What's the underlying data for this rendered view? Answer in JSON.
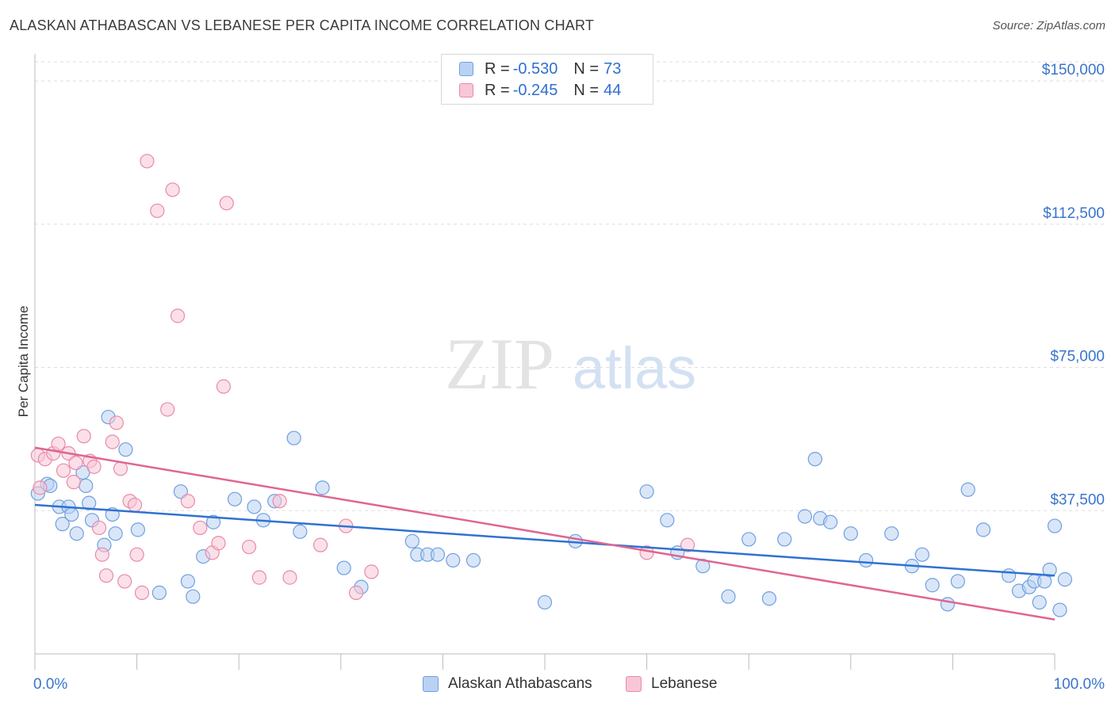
{
  "title": "ALASKAN ATHABASCAN VS LEBANESE PER CAPITA INCOME CORRELATION CHART",
  "source": "Source: ZipAtlas.com",
  "watermark": {
    "zip": "ZIP",
    "atlas": "atlas"
  },
  "legend": {
    "rows": [
      {
        "r_label": "R = ",
        "r_value": "-0.530",
        "n_label": "N = ",
        "n_value": "73"
      },
      {
        "r_label": "R = ",
        "r_value": "-0.245",
        "n_label": "N = ",
        "n_value": "44"
      }
    ]
  },
  "bottom_legend": [
    "Alaskan Athabascans",
    "Lebanese"
  ],
  "colors": {
    "blue_fill": "#b9d2f3",
    "blue_stroke": "#6fa0e0",
    "blue_line": "#2f72d2",
    "pink_fill": "#f8c6d6",
    "pink_stroke": "#e88aab",
    "pink_line": "#e06592",
    "axis_label": "#3a74cc",
    "grid": "#dddddd"
  },
  "chart_data": {
    "type": "scatter",
    "title": "ALASKAN ATHABASCAN VS LEBANESE PER CAPITA INCOME CORRELATION CHART",
    "xlabel": "",
    "ylabel": "Per Capita Income",
    "xlim": [
      0,
      100
    ],
    "ylim": [
      0,
      155000
    ],
    "y_ticks": [
      37500,
      75000,
      112500,
      150000
    ],
    "y_tick_labels": [
      "$37,500",
      "$75,000",
      "$112,500",
      "$150,000"
    ],
    "x_tick_labels": [
      "0.0%",
      "100.0%"
    ],
    "grid": true,
    "legend_position": "top-center",
    "series": [
      {
        "name": "Alaskan Athabascans",
        "color": "#6fa0e0",
        "trend": [
          [
            0,
            39000
          ],
          [
            100,
            20500
          ]
        ],
        "points": [
          [
            0.3,
            42000
          ],
          [
            1.2,
            44500
          ],
          [
            1.5,
            44000
          ],
          [
            2.4,
            38500
          ],
          [
            2.7,
            34000
          ],
          [
            3.3,
            38500
          ],
          [
            3.6,
            36500
          ],
          [
            4.1,
            31500
          ],
          [
            4.7,
            47500
          ],
          [
            5.0,
            44000
          ],
          [
            5.3,
            39500
          ],
          [
            5.6,
            35000
          ],
          [
            6.8,
            28500
          ],
          [
            7.2,
            62000
          ],
          [
            7.6,
            36500
          ],
          [
            7.9,
            31500
          ],
          [
            8.9,
            53500
          ],
          [
            10.1,
            32500
          ],
          [
            12.2,
            16000
          ],
          [
            14.3,
            42500
          ],
          [
            15.0,
            19000
          ],
          [
            15.5,
            15000
          ],
          [
            16.5,
            25500
          ],
          [
            17.5,
            34500
          ],
          [
            19.6,
            40500
          ],
          [
            21.5,
            38500
          ],
          [
            22.4,
            35000
          ],
          [
            23.5,
            40000
          ],
          [
            25.4,
            56500
          ],
          [
            26.0,
            32000
          ],
          [
            28.2,
            43500
          ],
          [
            30.3,
            22500
          ],
          [
            32.0,
            17500
          ],
          [
            37.0,
            29500
          ],
          [
            37.5,
            26000
          ],
          [
            38.5,
            26000
          ],
          [
            39.5,
            26000
          ],
          [
            41.0,
            24500
          ],
          [
            43.0,
            24500
          ],
          [
            50.0,
            13500
          ],
          [
            53.0,
            29500
          ],
          [
            60.0,
            42500
          ],
          [
            62.0,
            35000
          ],
          [
            63.0,
            26500
          ],
          [
            65.5,
            23000
          ],
          [
            68.0,
            15000
          ],
          [
            70.0,
            30000
          ],
          [
            72.0,
            14500
          ],
          [
            73.5,
            30000
          ],
          [
            75.5,
            36000
          ],
          [
            76.5,
            51000
          ],
          [
            77.0,
            35500
          ],
          [
            78.0,
            34500
          ],
          [
            80.0,
            31500
          ],
          [
            81.5,
            24500
          ],
          [
            84.0,
            31500
          ],
          [
            86.0,
            23000
          ],
          [
            87.0,
            26000
          ],
          [
            88.0,
            18000
          ],
          [
            89.5,
            13000
          ],
          [
            90.5,
            19000
          ],
          [
            91.5,
            43000
          ],
          [
            93.0,
            32500
          ],
          [
            95.5,
            20500
          ],
          [
            96.5,
            16500
          ],
          [
            97.5,
            17500
          ],
          [
            98.0,
            19000
          ],
          [
            98.5,
            13500
          ],
          [
            99.0,
            19000
          ],
          [
            99.5,
            22000
          ],
          [
            100.0,
            33500
          ],
          [
            100.5,
            11500
          ],
          [
            101.0,
            19500
          ]
        ]
      },
      {
        "name": "Lebanese",
        "color": "#e88aab",
        "trend": [
          [
            0,
            54000
          ],
          [
            100,
            9000
          ]
        ],
        "points": [
          [
            0.3,
            52000
          ],
          [
            0.5,
            43500
          ],
          [
            1.0,
            51000
          ],
          [
            1.8,
            52500
          ],
          [
            2.3,
            55000
          ],
          [
            2.8,
            48000
          ],
          [
            3.3,
            52500
          ],
          [
            3.8,
            45000
          ],
          [
            4.0,
            50000
          ],
          [
            4.8,
            57000
          ],
          [
            5.4,
            50500
          ],
          [
            5.8,
            49000
          ],
          [
            6.3,
            33000
          ],
          [
            6.6,
            26000
          ],
          [
            7.0,
            20500
          ],
          [
            7.6,
            55500
          ],
          [
            8.0,
            60500
          ],
          [
            8.4,
            48500
          ],
          [
            8.8,
            19000
          ],
          [
            9.3,
            40000
          ],
          [
            9.8,
            39000
          ],
          [
            10.0,
            26000
          ],
          [
            10.5,
            16000
          ],
          [
            11.0,
            129000
          ],
          [
            12.0,
            116000
          ],
          [
            13.0,
            64000
          ],
          [
            13.5,
            121500
          ],
          [
            14.0,
            88500
          ],
          [
            15.0,
            40000
          ],
          [
            16.2,
            33000
          ],
          [
            17.4,
            26500
          ],
          [
            18.0,
            29000
          ],
          [
            18.5,
            70000
          ],
          [
            18.8,
            118000
          ],
          [
            21.0,
            28000
          ],
          [
            22.0,
            20000
          ],
          [
            24.0,
            40000
          ],
          [
            25.0,
            20000
          ],
          [
            28.0,
            28500
          ],
          [
            30.5,
            33500
          ],
          [
            31.5,
            16000
          ],
          [
            33.0,
            21500
          ],
          [
            60.0,
            26500
          ],
          [
            64.0,
            28500
          ]
        ]
      }
    ]
  }
}
